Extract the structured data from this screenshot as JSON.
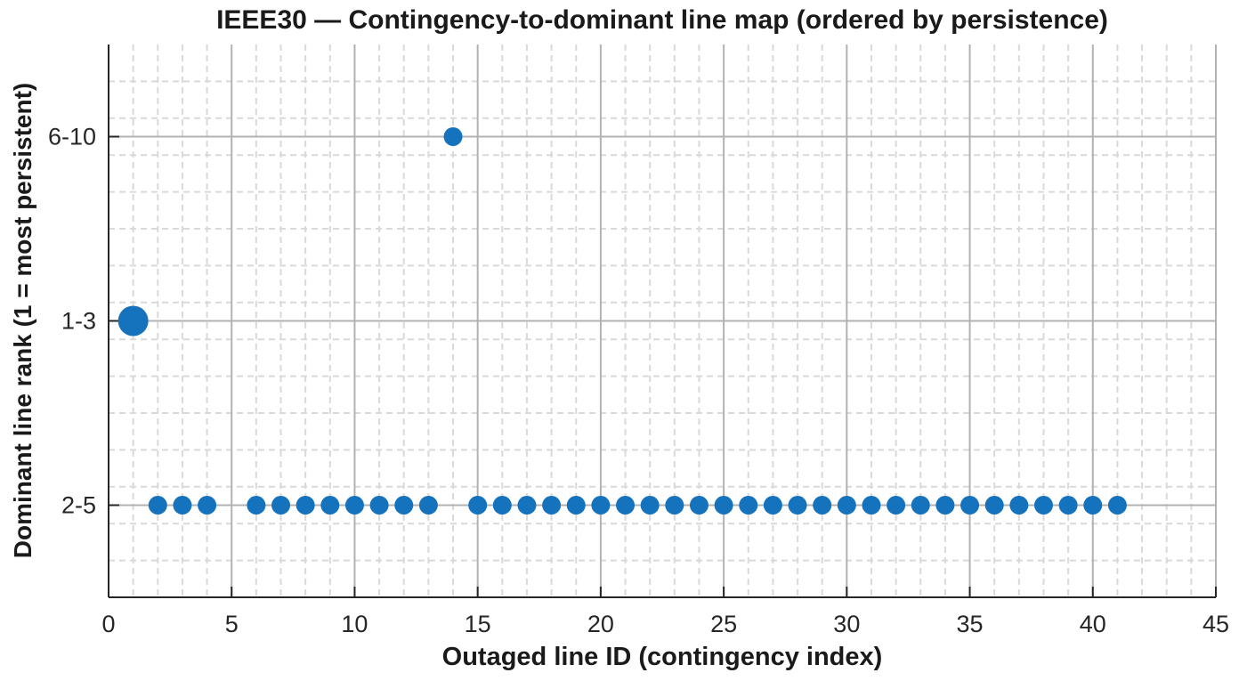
{
  "chart_data": {
    "type": "scatter",
    "title": "IEEE30 — Contingency-to-dominant line map (ordered by persistence)",
    "xlabel": "Outaged line ID (contingency index)",
    "ylabel": "Dominant line rank (1 = most persistent)",
    "xlim": [
      0,
      45
    ],
    "ylim": [
      0.5,
      3.5
    ],
    "x_ticks": [
      0,
      5,
      10,
      15,
      20,
      25,
      30,
      35,
      40,
      45
    ],
    "x_minor_step": 1,
    "y_minor_step": 0.2,
    "grid": true,
    "minor_grid": true,
    "legend": "none",
    "y_categories": [
      {
        "label": "6-10",
        "value": 3
      },
      {
        "label": "1-3",
        "value": 2
      },
      {
        "label": "2-5",
        "value": 1
      }
    ],
    "points": [
      {
        "x": 1,
        "rank": "1-3",
        "marker": "large"
      },
      {
        "x": 2,
        "rank": "2-5"
      },
      {
        "x": 3,
        "rank": "2-5"
      },
      {
        "x": 4,
        "rank": "2-5"
      },
      {
        "x": 6,
        "rank": "2-5"
      },
      {
        "x": 7,
        "rank": "2-5"
      },
      {
        "x": 8,
        "rank": "2-5"
      },
      {
        "x": 9,
        "rank": "2-5"
      },
      {
        "x": 10,
        "rank": "2-5"
      },
      {
        "x": 11,
        "rank": "2-5"
      },
      {
        "x": 12,
        "rank": "2-5"
      },
      {
        "x": 13,
        "rank": "2-5"
      },
      {
        "x": 14,
        "rank": "6-10"
      },
      {
        "x": 15,
        "rank": "2-5"
      },
      {
        "x": 16,
        "rank": "2-5"
      },
      {
        "x": 17,
        "rank": "2-5"
      },
      {
        "x": 18,
        "rank": "2-5"
      },
      {
        "x": 19,
        "rank": "2-5"
      },
      {
        "x": 20,
        "rank": "2-5"
      },
      {
        "x": 21,
        "rank": "2-5"
      },
      {
        "x": 22,
        "rank": "2-5"
      },
      {
        "x": 23,
        "rank": "2-5"
      },
      {
        "x": 24,
        "rank": "2-5"
      },
      {
        "x": 25,
        "rank": "2-5"
      },
      {
        "x": 26,
        "rank": "2-5"
      },
      {
        "x": 27,
        "rank": "2-5"
      },
      {
        "x": 28,
        "rank": "2-5"
      },
      {
        "x": 29,
        "rank": "2-5"
      },
      {
        "x": 30,
        "rank": "2-5"
      },
      {
        "x": 31,
        "rank": "2-5"
      },
      {
        "x": 32,
        "rank": "2-5"
      },
      {
        "x": 33,
        "rank": "2-5"
      },
      {
        "x": 34,
        "rank": "2-5"
      },
      {
        "x": 35,
        "rank": "2-5"
      },
      {
        "x": 36,
        "rank": "2-5"
      },
      {
        "x": 37,
        "rank": "2-5"
      },
      {
        "x": 38,
        "rank": "2-5"
      },
      {
        "x": 39,
        "rank": "2-5"
      },
      {
        "x": 40,
        "rank": "2-5"
      },
      {
        "x": 41,
        "rank": "2-5"
      }
    ],
    "colors": {
      "marker": "#1572BD",
      "major_grid": "#b2b2b2",
      "minor_grid": "#d9d9d9",
      "axis": "#262626",
      "text": "#262626"
    }
  }
}
